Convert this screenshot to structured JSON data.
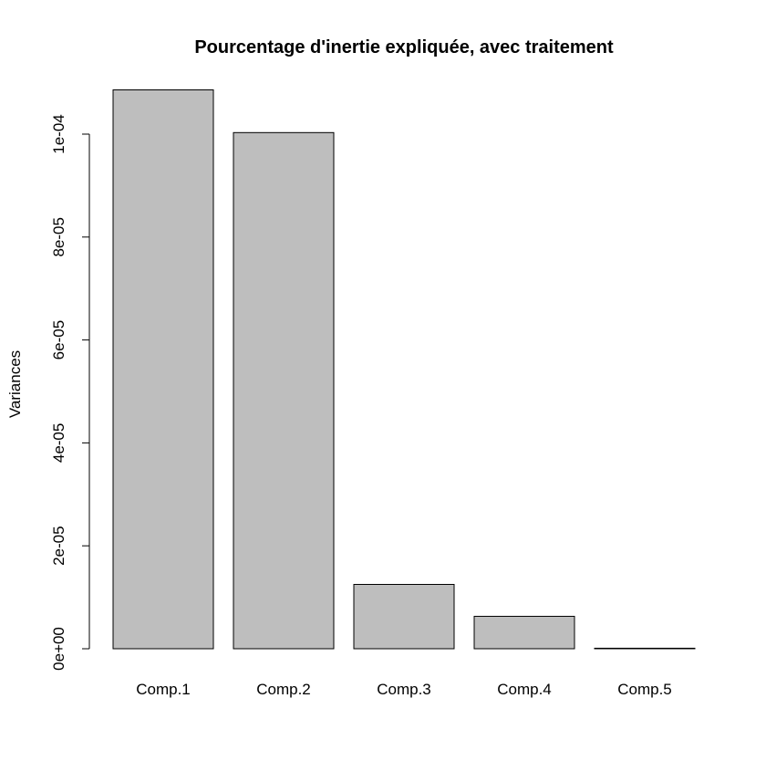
{
  "chart_data": {
    "type": "bar",
    "title": "Pourcentage d'inertie expliquée, avec traitement",
    "xlabel": "",
    "ylabel": "Variances",
    "categories": [
      "Comp.1",
      "Comp.2",
      "Comp.3",
      "Comp.4",
      "Comp.5"
    ],
    "values": [
      0.0001086,
      0.0001003,
      1.25e-05,
      6.3e-06,
      1e-07
    ],
    "ylim": [
      0,
      0.00011
    ],
    "yticks": [
      0,
      2e-05,
      4e-05,
      6e-05,
      8e-05,
      0.0001
    ],
    "ytick_labels": [
      "0e+00",
      "2e-05",
      "4e-05",
      "6e-05",
      "8e-05",
      "1e-04"
    ],
    "bar_color": "#bebebe",
    "grid": false,
    "legend": "none"
  }
}
